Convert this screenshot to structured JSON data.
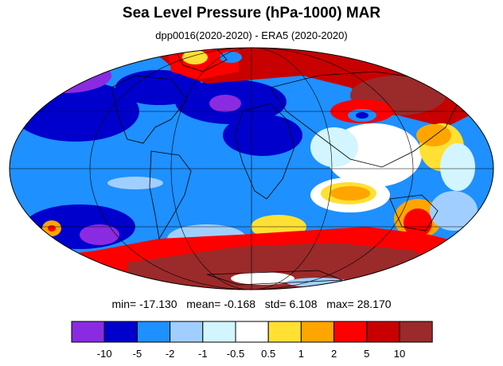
{
  "title": "Sea Level Pressure (hPa-1000) MAR",
  "subtitle": "dpp0016(2020-2020) - ERA5 (2020-2020)",
  "stats": {
    "min_label": "min=",
    "min": "-17.130",
    "mean_label": "mean=",
    "mean": "-0.168",
    "std_label": "std=",
    "std": "6.108",
    "max_label": "max=",
    "max": "28.170"
  },
  "colorbar": {
    "colors": [
      "#8a2be2",
      "#0000cd",
      "#1e90ff",
      "#a0cfff",
      "#d2f5ff",
      "#ffffff",
      "#ffe033",
      "#ffa500",
      "#ff0000",
      "#c80000",
      "#9b2a2a"
    ],
    "labels": [
      "-10",
      "-5",
      "-2",
      "-1",
      "-0.5",
      "0.5",
      "1",
      "2",
      "5",
      "10"
    ]
  },
  "map": {
    "projection": "mollweide",
    "ocean_base_color": "#1e90ff",
    "land_outline_color": "#000000"
  }
}
